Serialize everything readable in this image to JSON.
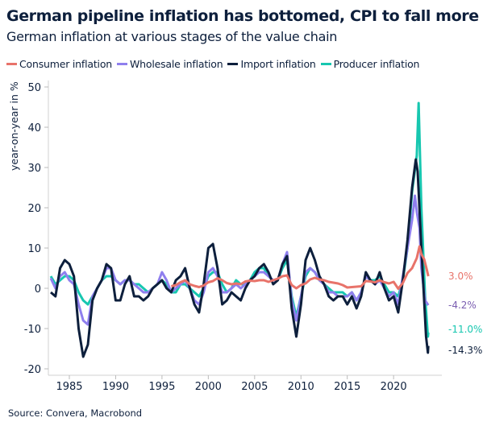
{
  "chart_data": {
    "type": "line",
    "title": "German pipeline inflation has bottomed, CPI to fall more",
    "subtitle": "German inflation at various stages of the value chain",
    "ylabel": "year-on-year in %",
    "xlabel": "",
    "xlim": [
      1983,
      2024.3
    ],
    "ylim": [
      -22,
      52
    ],
    "yticks": [
      -20,
      -10,
      0,
      10,
      20,
      30,
      40,
      50
    ],
    "xticks": [
      1985,
      1990,
      1995,
      2000,
      2005,
      2010,
      2015,
      2020
    ],
    "grid": false,
    "legend_placement": "top",
    "source": "Source: Convera, Macrobond",
    "series": [
      {
        "name": "Consumer inflation",
        "color": "#e8736a",
        "label_color": "#e8736a",
        "last_label": "3.0%",
        "points": [
          [
            1996,
            0.5
          ],
          [
            1996.5,
            0.8
          ],
          [
            1997,
            1.5
          ],
          [
            1997.5,
            2.0
          ],
          [
            1998,
            1.0
          ],
          [
            1998.5,
            0.6
          ],
          [
            1999,
            0.3
          ],
          [
            1999.5,
            0.7
          ],
          [
            2000,
            1.5
          ],
          [
            2000.5,
            1.8
          ],
          [
            2001,
            2.5
          ],
          [
            2001.5,
            2.0
          ],
          [
            2002,
            1.3
          ],
          [
            2002.5,
            1.0
          ],
          [
            2003,
            1.2
          ],
          [
            2003.5,
            1.0
          ],
          [
            2004,
            1.7
          ],
          [
            2004.5,
            1.9
          ],
          [
            2005,
            1.8
          ],
          [
            2005.5,
            2.0
          ],
          [
            2006,
            2.0
          ],
          [
            2006.5,
            1.6
          ],
          [
            2007,
            2.0
          ],
          [
            2007.5,
            2.4
          ],
          [
            2008,
            3.0
          ],
          [
            2008.5,
            3.2
          ],
          [
            2009,
            0.8
          ],
          [
            2009.5,
            0.0
          ],
          [
            2010,
            0.8
          ],
          [
            2010.5,
            1.2
          ],
          [
            2011,
            2.2
          ],
          [
            2011.5,
            2.6
          ],
          [
            2012,
            2.2
          ],
          [
            2012.5,
            2.0
          ],
          [
            2013,
            1.6
          ],
          [
            2013.5,
            1.4
          ],
          [
            2014,
            1.2
          ],
          [
            2014.5,
            0.8
          ],
          [
            2015,
            0.2
          ],
          [
            2015.5,
            0.3
          ],
          [
            2016,
            0.4
          ],
          [
            2016.5,
            0.5
          ],
          [
            2017,
            1.8
          ],
          [
            2017.5,
            1.7
          ],
          [
            2018,
            1.5
          ],
          [
            2018.5,
            2.0
          ],
          [
            2019,
            1.5
          ],
          [
            2019.5,
            1.2
          ],
          [
            2020,
            1.6
          ],
          [
            2020.5,
            -0.1
          ],
          [
            2021,
            1.3
          ],
          [
            2021.5,
            3.8
          ],
          [
            2022,
            5.0
          ],
          [
            2022.5,
            7.5
          ],
          [
            2022.8,
            10.4
          ],
          [
            2023,
            8.5
          ],
          [
            2023.3,
            7.2
          ],
          [
            2023.6,
            4.5
          ],
          [
            2023.75,
            3.0
          ]
        ]
      },
      {
        "name": "Wholesale inflation",
        "color": "#8f7fee",
        "label_color": "#7a5db0",
        "last_label": "-4.2%",
        "points": [
          [
            1983,
            2.5
          ],
          [
            1983.5,
            0
          ],
          [
            1984,
            3
          ],
          [
            1984.5,
            4
          ],
          [
            1985,
            2
          ],
          [
            1985.5,
            1
          ],
          [
            1986,
            -4
          ],
          [
            1986.5,
            -8
          ],
          [
            1987,
            -9
          ],
          [
            1987.5,
            -2
          ],
          [
            1988,
            0
          ],
          [
            1988.5,
            2
          ],
          [
            1989,
            5
          ],
          [
            1989.5,
            5
          ],
          [
            1990,
            2
          ],
          [
            1990.5,
            1
          ],
          [
            1991,
            2
          ],
          [
            1991.5,
            2
          ],
          [
            1992,
            1
          ],
          [
            1992.5,
            0
          ],
          [
            1993,
            -1
          ],
          [
            1993.5,
            -1
          ],
          [
            1994,
            0
          ],
          [
            1994.5,
            1
          ],
          [
            1995,
            4
          ],
          [
            1995.5,
            2
          ],
          [
            1996,
            -1
          ],
          [
            1996.5,
            0
          ],
          [
            1997,
            1
          ],
          [
            1997.5,
            2
          ],
          [
            1998,
            0
          ],
          [
            1998.5,
            -3
          ],
          [
            1999,
            -4
          ],
          [
            1999.5,
            -1
          ],
          [
            2000,
            4
          ],
          [
            2000.5,
            5
          ],
          [
            2001,
            3
          ],
          [
            2001.5,
            -1
          ],
          [
            2002,
            -1
          ],
          [
            2002.5,
            0
          ],
          [
            2003,
            1
          ],
          [
            2003.5,
            0
          ],
          [
            2004,
            1
          ],
          [
            2004.5,
            2
          ],
          [
            2005,
            3
          ],
          [
            2005.5,
            4
          ],
          [
            2006,
            4
          ],
          [
            2006.5,
            3
          ],
          [
            2007,
            2
          ],
          [
            2007.5,
            2
          ],
          [
            2008,
            6
          ],
          [
            2008.5,
            9
          ],
          [
            2009,
            -3
          ],
          [
            2009.5,
            -8
          ],
          [
            2010,
            -2
          ],
          [
            2010.5,
            4
          ],
          [
            2011,
            5
          ],
          [
            2011.5,
            4
          ],
          [
            2012,
            2
          ],
          [
            2012.5,
            1
          ],
          [
            2013,
            -1
          ],
          [
            2013.5,
            -1
          ],
          [
            2014,
            -2
          ],
          [
            2014.5,
            -2
          ],
          [
            2015,
            -2
          ],
          [
            2015.5,
            -1
          ],
          [
            2016,
            -3
          ],
          [
            2016.5,
            -1
          ],
          [
            2017,
            3
          ],
          [
            2017.5,
            2
          ],
          [
            2018,
            1
          ],
          [
            2018.5,
            2
          ],
          [
            2019,
            0
          ],
          [
            2019.5,
            -2
          ],
          [
            2020,
            -1
          ],
          [
            2020.5,
            -4
          ],
          [
            2021,
            3
          ],
          [
            2021.5,
            10
          ],
          [
            2022,
            17
          ],
          [
            2022.3,
            23
          ],
          [
            2022.5,
            19
          ],
          [
            2022.8,
            15
          ],
          [
            2023,
            5
          ],
          [
            2023.4,
            -3
          ],
          [
            2023.75,
            -4.2
          ]
        ]
      },
      {
        "name": "Import inflation",
        "color": "#0d1f3c",
        "label_color": "#0d1f3c",
        "last_label": "-14.3%",
        "points": [
          [
            1983,
            -1
          ],
          [
            1983.5,
            -2
          ],
          [
            1984,
            5
          ],
          [
            1984.5,
            7
          ],
          [
            1985,
            6
          ],
          [
            1985.5,
            3
          ],
          [
            1986,
            -10
          ],
          [
            1986.5,
            -17
          ],
          [
            1987,
            -14
          ],
          [
            1987.5,
            -3
          ],
          [
            1988,
            0
          ],
          [
            1988.5,
            2
          ],
          [
            1989,
            6
          ],
          [
            1989.5,
            5
          ],
          [
            1990,
            -3
          ],
          [
            1990.5,
            -3
          ],
          [
            1991,
            1
          ],
          [
            1991.5,
            3
          ],
          [
            1992,
            -2
          ],
          [
            1992.5,
            -2
          ],
          [
            1993,
            -3
          ],
          [
            1993.5,
            -2
          ],
          [
            1994,
            0
          ],
          [
            1994.5,
            1
          ],
          [
            1995,
            2
          ],
          [
            1995.5,
            0
          ],
          [
            1996,
            -1
          ],
          [
            1996.5,
            2
          ],
          [
            1997,
            3
          ],
          [
            1997.5,
            5
          ],
          [
            1998,
            0
          ],
          [
            1998.5,
            -4
          ],
          [
            1999,
            -6
          ],
          [
            1999.5,
            1
          ],
          [
            2000,
            10
          ],
          [
            2000.5,
            11
          ],
          [
            2001,
            5
          ],
          [
            2001.5,
            -4
          ],
          [
            2002,
            -3
          ],
          [
            2002.5,
            -1
          ],
          [
            2003,
            -2
          ],
          [
            2003.5,
            -3
          ],
          [
            2004,
            0
          ],
          [
            2004.5,
            2
          ],
          [
            2005,
            3
          ],
          [
            2005.5,
            5
          ],
          [
            2006,
            6
          ],
          [
            2006.5,
            4
          ],
          [
            2007,
            1
          ],
          [
            2007.5,
            2
          ],
          [
            2008,
            6
          ],
          [
            2008.5,
            8
          ],
          [
            2009,
            -5
          ],
          [
            2009.5,
            -12
          ],
          [
            2010,
            -4
          ],
          [
            2010.5,
            7
          ],
          [
            2011,
            10
          ],
          [
            2011.5,
            7
          ],
          [
            2012,
            3
          ],
          [
            2012.5,
            1
          ],
          [
            2013,
            -2
          ],
          [
            2013.5,
            -3
          ],
          [
            2014,
            -2
          ],
          [
            2014.5,
            -2
          ],
          [
            2015,
            -4
          ],
          [
            2015.5,
            -2
          ],
          [
            2016,
            -5
          ],
          [
            2016.5,
            -2
          ],
          [
            2017,
            4
          ],
          [
            2017.5,
            2
          ],
          [
            2018,
            1
          ],
          [
            2018.5,
            4
          ],
          [
            2019,
            0
          ],
          [
            2019.5,
            -3
          ],
          [
            2020,
            -2
          ],
          [
            2020.5,
            -6
          ],
          [
            2021,
            2
          ],
          [
            2021.5,
            12
          ],
          [
            2022,
            25
          ],
          [
            2022.4,
            32
          ],
          [
            2022.6,
            29
          ],
          [
            2023,
            10
          ],
          [
            2023.5,
            -12
          ],
          [
            2023.7,
            -16
          ],
          [
            2023.75,
            -14.3
          ]
        ]
      },
      {
        "name": "Producer inflation",
        "color": "#17c7b0",
        "label_color": "#17c7b0",
        "last_label": "-11.0%",
        "points": [
          [
            1983,
            3
          ],
          [
            1983.5,
            1
          ],
          [
            1984,
            2
          ],
          [
            1984.5,
            3
          ],
          [
            1985,
            3
          ],
          [
            1985.5,
            2
          ],
          [
            1986,
            -1
          ],
          [
            1986.5,
            -3
          ],
          [
            1987,
            -4
          ],
          [
            1987.5,
            -2
          ],
          [
            1988,
            0
          ],
          [
            1988.5,
            2
          ],
          [
            1989,
            3
          ],
          [
            1989.5,
            3
          ],
          [
            1990,
            2
          ],
          [
            1990.5,
            1
          ],
          [
            1991,
            2
          ],
          [
            1991.5,
            2
          ],
          [
            1992,
            1
          ],
          [
            1992.5,
            1
          ],
          [
            1993,
            0
          ],
          [
            1993.5,
            -1
          ],
          [
            1994,
            0
          ],
          [
            1994.5,
            1
          ],
          [
            1995,
            2
          ],
          [
            1995.5,
            1
          ],
          [
            1996,
            -1
          ],
          [
            1996.5,
            -1
          ],
          [
            1997,
            1
          ],
          [
            1997.5,
            1
          ],
          [
            1998,
            0
          ],
          [
            1998.5,
            -1
          ],
          [
            1999,
            -2
          ],
          [
            1999.5,
            0
          ],
          [
            2000,
            3
          ],
          [
            2000.5,
            4
          ],
          [
            2001,
            4
          ],
          [
            2001.5,
            1
          ],
          [
            2002,
            -1
          ],
          [
            2002.5,
            0
          ],
          [
            2003,
            2
          ],
          [
            2003.5,
            1
          ],
          [
            2004,
            1
          ],
          [
            2004.5,
            2
          ],
          [
            2005,
            4
          ],
          [
            2005.5,
            5
          ],
          [
            2006,
            5
          ],
          [
            2006.5,
            3
          ],
          [
            2007,
            2
          ],
          [
            2007.5,
            2
          ],
          [
            2008,
            5
          ],
          [
            2008.5,
            7
          ],
          [
            2009,
            -2
          ],
          [
            2009.5,
            -7
          ],
          [
            2010,
            -2
          ],
          [
            2010.5,
            3
          ],
          [
            2011,
            5
          ],
          [
            2011.5,
            4
          ],
          [
            2012,
            2
          ],
          [
            2012.5,
            1
          ],
          [
            2013,
            0
          ],
          [
            2013.5,
            -1
          ],
          [
            2014,
            -1
          ],
          [
            2014.5,
            -1
          ],
          [
            2015,
            -2
          ],
          [
            2015.5,
            -1
          ],
          [
            2016,
            -3
          ],
          [
            2016.5,
            -1
          ],
          [
            2017,
            3
          ],
          [
            2017.5,
            2
          ],
          [
            2018,
            2
          ],
          [
            2018.5,
            3
          ],
          [
            2019,
            1
          ],
          [
            2019.5,
            -1
          ],
          [
            2020,
            -1
          ],
          [
            2020.5,
            -2
          ],
          [
            2021,
            2
          ],
          [
            2021.5,
            10
          ],
          [
            2022,
            24
          ],
          [
            2022.5,
            33
          ],
          [
            2022.7,
            46
          ],
          [
            2023,
            20
          ],
          [
            2023.4,
            -2
          ],
          [
            2023.7,
            -12
          ],
          [
            2023.75,
            -11.0
          ]
        ]
      }
    ]
  }
}
